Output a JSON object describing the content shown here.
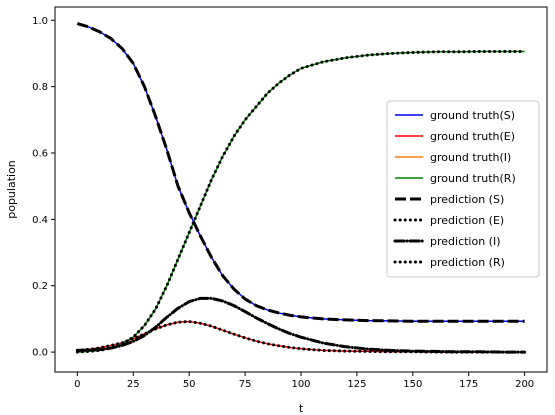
{
  "chart_data": {
    "type": "line",
    "xlabel": "t",
    "ylabel": "population",
    "xlim": [
      -10,
      210
    ],
    "ylim": [
      -0.06,
      1.04
    ],
    "xticks": [
      0,
      25,
      50,
      75,
      100,
      125,
      150,
      175,
      200
    ],
    "xtick_labels": [
      "0",
      "25",
      "50",
      "75",
      "100",
      "125",
      "150",
      "175",
      "200"
    ],
    "yticks": [
      0.0,
      0.2,
      0.4,
      0.6,
      0.8,
      1.0
    ],
    "ytick_labels": [
      "0.0",
      "0.2",
      "0.4",
      "0.6",
      "0.8",
      "1.0"
    ],
    "grid": false,
    "legend_position": "center-right",
    "x": [
      0,
      5,
      10,
      15,
      20,
      25,
      30,
      35,
      40,
      45,
      50,
      55,
      60,
      65,
      70,
      75,
      80,
      85,
      90,
      95,
      100,
      110,
      120,
      130,
      140,
      150,
      160,
      170,
      180,
      190,
      200
    ],
    "series": [
      {
        "name": "ground truth(S)",
        "kind": "truth",
        "color": "#0000ff",
        "values": [
          0.99,
          0.98,
          0.965,
          0.945,
          0.915,
          0.87,
          0.8,
          0.71,
          0.61,
          0.5,
          0.42,
          0.35,
          0.285,
          0.23,
          0.19,
          0.16,
          0.14,
          0.127,
          0.118,
          0.111,
          0.106,
          0.1,
          0.097,
          0.095,
          0.094,
          0.093,
          0.093,
          0.093,
          0.093,
          0.093,
          0.093
        ]
      },
      {
        "name": "ground truth(E)",
        "kind": "truth",
        "color": "#ff0000",
        "values": [
          0.005,
          0.008,
          0.013,
          0.02,
          0.028,
          0.04,
          0.055,
          0.07,
          0.082,
          0.09,
          0.092,
          0.087,
          0.078,
          0.066,
          0.054,
          0.043,
          0.033,
          0.025,
          0.019,
          0.014,
          0.01,
          0.005,
          0.003,
          0.002,
          0.001,
          0.001,
          0.0,
          0.0,
          0.0,
          0.0,
          0.0
        ]
      },
      {
        "name": "ground truth(I)",
        "kind": "truth",
        "color": "#ff7f0e",
        "values": [
          0.005,
          0.006,
          0.008,
          0.012,
          0.02,
          0.032,
          0.05,
          0.075,
          0.105,
          0.132,
          0.152,
          0.162,
          0.162,
          0.154,
          0.14,
          0.122,
          0.103,
          0.086,
          0.07,
          0.056,
          0.045,
          0.027,
          0.016,
          0.009,
          0.005,
          0.003,
          0.002,
          0.001,
          0.001,
          0.0,
          0.0
        ]
      },
      {
        "name": "ground truth(R)",
        "kind": "truth",
        "color": "#008000",
        "values": [
          0.0,
          0.002,
          0.005,
          0.012,
          0.025,
          0.045,
          0.08,
          0.13,
          0.2,
          0.28,
          0.36,
          0.44,
          0.52,
          0.59,
          0.65,
          0.7,
          0.74,
          0.78,
          0.81,
          0.835,
          0.855,
          0.875,
          0.887,
          0.895,
          0.9,
          0.903,
          0.905,
          0.905,
          0.906,
          0.906,
          0.906
        ]
      },
      {
        "name": "prediction (S)",
        "kind": "pred",
        "dash": "dashed",
        "of": 0
      },
      {
        "name": "prediction (E)",
        "kind": "pred",
        "dash": "dotted",
        "of": 1
      },
      {
        "name": "prediction (I)",
        "kind": "pred",
        "dash": "dashdot",
        "of": 2
      },
      {
        "name": "prediction (R)",
        "kind": "pred",
        "dash": "dotted",
        "of": 3
      }
    ]
  }
}
